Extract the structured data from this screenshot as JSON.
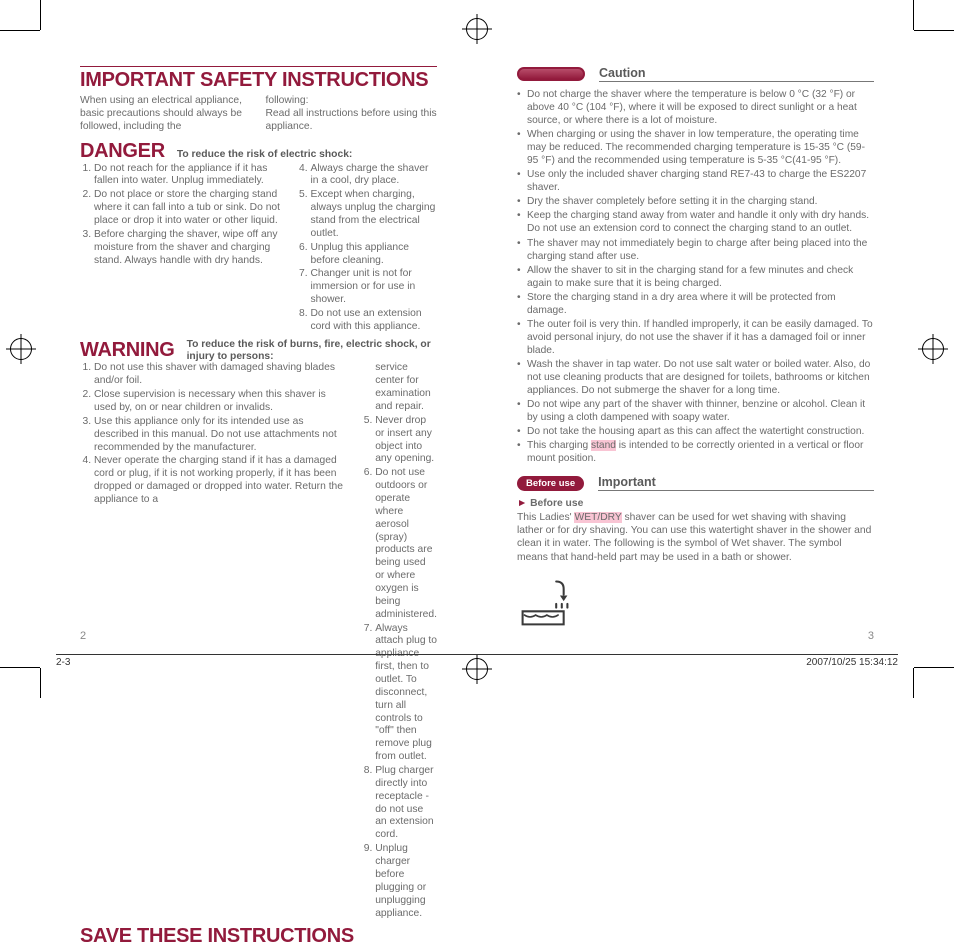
{
  "left": {
    "title": "IMPORTANT SAFETY INSTRUCTIONS",
    "intro_l": "When using an electrical appliance, basic precautions should always be followed, including the",
    "intro_r": "following:\nRead all instructions before using this appliance.",
    "danger": "DANGER",
    "danger_sub": "To reduce the risk of electric shock:",
    "danger_l": [
      "Do not reach for the appliance if it has fallen into water. Unplug immediately.",
      "Do not place or store the charging stand where it can fall into a tub or sink. Do not place or drop it into water or other liquid.",
      "Before charging the shaver, wipe off any moisture from the shaver and charging stand. Always handle with dry hands."
    ],
    "danger_r": [
      "Always charge the shaver in a cool, dry place.",
      "Except when charging, always unplug the charging stand from the electrical outlet.",
      "Unplug this appliance before cleaning.",
      "Changer unit is not for immersion or for use in shower.",
      "Do not use an extension cord with this appliance."
    ],
    "warning": "WARNING",
    "warning_sub": "To reduce the risk of burns, fire, electric shock, or injury to persons:",
    "warning_l": [
      "Do not use this shaver with damaged shaving blades and/or foil.",
      "Close supervision is necessary when this shaver is used by, on or near children or invalids.",
      "Use this appliance only for its intended use as described in this manual. Do not use attachments not recommended by the manufacturer.",
      "Never operate the charging stand if it has a damaged cord or plug, if it is not working properly, if it has been dropped or damaged or dropped into water. Return the appliance to a"
    ],
    "warning_r_lead": "service center for examination and repair.",
    "warning_r": [
      "Never drop or insert any object into any opening.",
      "Do not use outdoors or operate where aerosol (spray) products are being used or where oxygen is being administered.",
      "Always attach plug to appliance first, then to outlet. To disconnect, turn all controls to \"off\" then remove plug from outlet.",
      "Plug charger directly into receptacle - do not use an extension cord.",
      "Unplug charger before plugging or unplugging appliance."
    ],
    "save": "SAVE THESE INSTRUCTIONS",
    "page": "2"
  },
  "right": {
    "caution": "Caution",
    "caution_items": [
      "Do not charge the shaver where the temperature is below 0 °C (32 °F) or above 40 °C (104 °F), where it will be exposed to direct sunlight or a heat source, or where there is a lot of moisture.",
      "When charging or using the shaver in low temperature, the operating time may be reduced. The recommended charging temperature is 15-35 °C (59-95 °F) and the recommended using temperature is 5-35 °C(41-95 °F).",
      "Use only the included shaver charging stand RE7-43 to charge the ES2207 shaver.",
      "Dry the shaver completely before setting it in the charging stand.",
      "Keep the charging stand away from water and handle it only with dry hands. Do not use an extension cord to connect the charging stand to an outlet.",
      "The shaver may not immediately begin to charge after being placed into the charging stand after use.",
      "Allow the shaver to sit in the charging stand for a few minutes and check again to make sure that it is being charged.",
      "Store the charging stand in a dry area where it will be protected from damage.",
      "The outer foil is very thin. If handled improperly, it can be easily damaged. To avoid personal injury, do not use the shaver if it has a damaged foil or inner blade.",
      "Wash the shaver in tap water. Do not use salt water or boiled water. Also, do not use cleaning products that are designed for toilets, bathrooms or kitchen appliances. Do not submerge the shaver for a long time.",
      "Do not wipe any part of the shaver with thinner, benzine or alcohol. Clean it by using a cloth dampened with soapy water.",
      "Do not take the housing apart as this can affect the watertight construction."
    ],
    "caution_last_pre": "This charging ",
    "caution_last_hl": "stand",
    "caution_last_post": " is intended to be correctly oriented in a vertical or floor mount position.",
    "important": "Important",
    "before_pill": "Before use",
    "before_head": "Before use",
    "before_pre": "This Ladies' ",
    "before_hl": "WET/DRY",
    "before_post": " shaver can be used for wet shaving with shaving lather or for dry shaving. You can use this watertight shaver in the shower and clean it in water. The following is the symbol of Wet shaver. The symbol means that hand-held part may be used in a bath or shower.",
    "page": "3"
  },
  "footer": {
    "left": "2-3",
    "right": "2007/10/25   15:34:12"
  },
  "colors": {
    "accent": "#921a3c",
    "text": "#6b6b6b",
    "highlight": "#f9c5d4"
  }
}
